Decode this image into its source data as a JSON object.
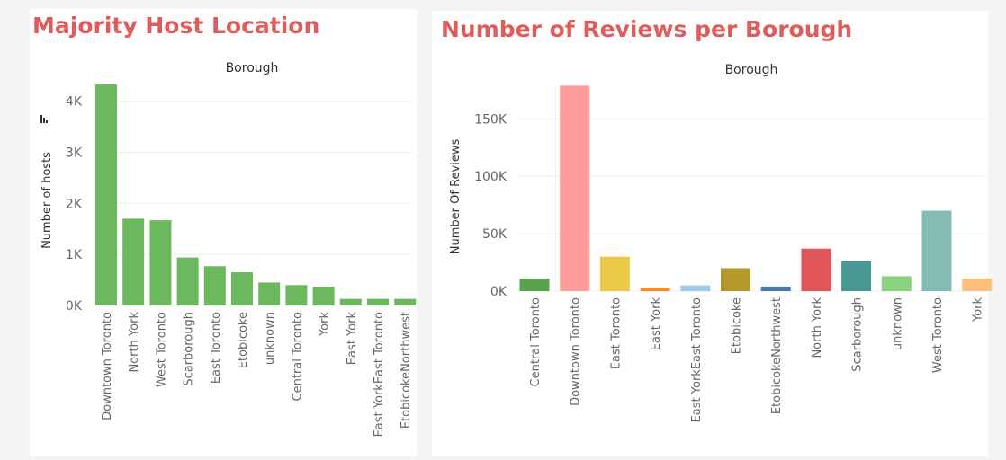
{
  "colors": {
    "title": "#e05c5c",
    "grid": "#ececec",
    "axis_text": "#666666",
    "label_text": "#333333"
  },
  "chart_data": [
    {
      "type": "bar",
      "title": "Majority Host Location",
      "column_header": "Borough",
      "ylabel": "Number of hosts",
      "y_tick_labels": [
        "0K",
        "1K",
        "2K",
        "3K",
        "4K"
      ],
      "ylim": [
        0,
        4400
      ],
      "grid": true,
      "categories": [
        "Downtown Toronto",
        "North York",
        "West Toronto",
        "Scarborough",
        "East Toronto",
        "Etobicoke",
        "unknown",
        "Central Toronto",
        "York",
        "East York",
        "East YorkEast Toronto",
        "EtobicokeNorthwest"
      ],
      "values": [
        4330,
        1700,
        1670,
        940,
        770,
        650,
        450,
        400,
        370,
        130,
        130,
        130
      ],
      "bar_colors": [
        "#6cb85c",
        "#6cb85c",
        "#6cb85c",
        "#6cb85c",
        "#6cb85c",
        "#6cb85c",
        "#6cb85c",
        "#6cb85c",
        "#6cb85c",
        "#6cb85c",
        "#6cb85c",
        "#6cb85c"
      ]
    },
    {
      "type": "bar",
      "title": "Number of Reviews per Borough",
      "column_header": "Borough",
      "ylabel": "Number Of Reviews",
      "y_tick_labels": [
        "0K",
        "50K",
        "100K",
        "150K"
      ],
      "ylim": [
        0,
        180000
      ],
      "grid": true,
      "categories": [
        "Central Toronto",
        "Downtown Toronto",
        "East Toronto",
        "East York",
        "East YorkEast Toronto",
        "Etobicoke",
        "EtobicokeNorthwest",
        "North York",
        "Scarborough",
        "unknown",
        "West Toronto",
        "York"
      ],
      "values": [
        11000,
        179000,
        30000,
        3000,
        5000,
        20000,
        4000,
        37000,
        26000,
        13000,
        70000,
        11000
      ],
      "bar_colors": [
        "#59a14f",
        "#ff9d9a",
        "#edc948",
        "#f28e2b",
        "#a0cbe8",
        "#b6992d",
        "#4e79a7",
        "#e15759",
        "#499894",
        "#8cd17d",
        "#86bcb6",
        "#ffbe7d"
      ]
    }
  ]
}
